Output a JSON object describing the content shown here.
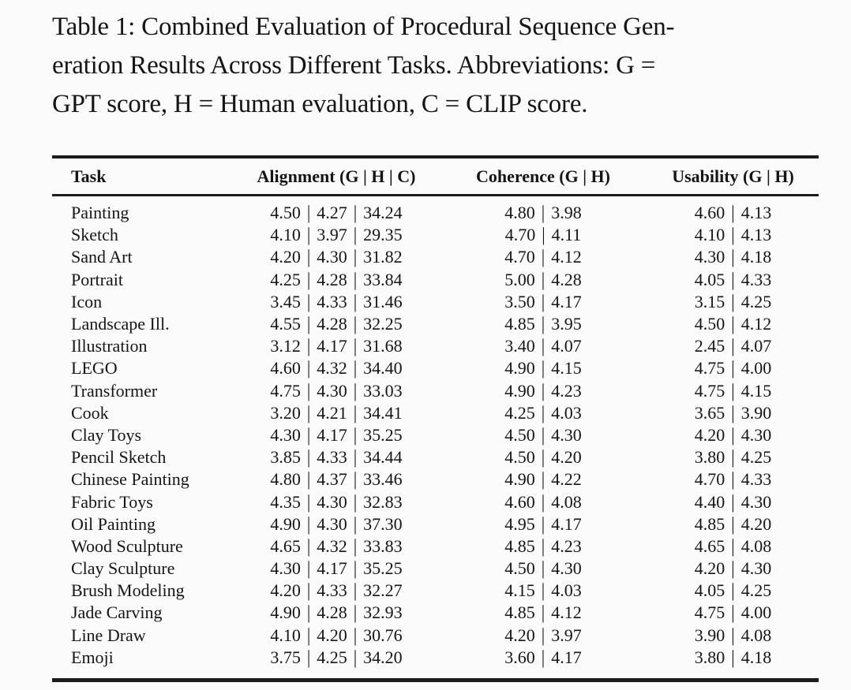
{
  "page": {
    "background": "#fbfbfb",
    "text_color": "#151515",
    "rule_color": "#1c1c1c"
  },
  "caption": {
    "lines": [
      "Table 1: Combined Evaluation of Procedural Sequence Gen-",
      "eration Results Across Different Tasks. Abbreviations: G =",
      "GPT score, H = Human evaluation, C = CLIP score."
    ]
  },
  "table": {
    "separator": "|",
    "columns": [
      {
        "key": "task",
        "label": "Task"
      },
      {
        "key": "alignment",
        "label": "Alignment (G | H | C)"
      },
      {
        "key": "coherence",
        "label": "Coherence (G | H)"
      },
      {
        "key": "usability",
        "label": "Usability (G | H)"
      }
    ],
    "rows": [
      {
        "task": "Painting",
        "alignment": [
          "4.50",
          "4.27",
          "34.24"
        ],
        "coherence": [
          "4.80",
          "3.98"
        ],
        "usability": [
          "4.60",
          "4.13"
        ]
      },
      {
        "task": "Sketch",
        "alignment": [
          "4.10",
          "3.97",
          "29.35"
        ],
        "coherence": [
          "4.70",
          "4.11"
        ],
        "usability": [
          "4.10",
          "4.13"
        ]
      },
      {
        "task": "Sand Art",
        "alignment": [
          "4.20",
          "4.30",
          "31.82"
        ],
        "coherence": [
          "4.70",
          "4.12"
        ],
        "usability": [
          "4.30",
          "4.18"
        ]
      },
      {
        "task": "Portrait",
        "alignment": [
          "4.25",
          "4.28",
          "33.84"
        ],
        "coherence": [
          "5.00",
          "4.28"
        ],
        "usability": [
          "4.05",
          "4.33"
        ]
      },
      {
        "task": "Icon",
        "alignment": [
          "3.45",
          "4.33",
          "31.46"
        ],
        "coherence": [
          "3.50",
          "4.17"
        ],
        "usability": [
          "3.15",
          "4.25"
        ]
      },
      {
        "task": "Landscape Ill.",
        "alignment": [
          "4.55",
          "4.28",
          "32.25"
        ],
        "coherence": [
          "4.85",
          "3.95"
        ],
        "usability": [
          "4.50",
          "4.12"
        ]
      },
      {
        "task": "Illustration",
        "alignment": [
          "3.12",
          "4.17",
          "31.68"
        ],
        "coherence": [
          "3.40",
          "4.07"
        ],
        "usability": [
          "2.45",
          "4.07"
        ]
      },
      {
        "task": "LEGO",
        "alignment": [
          "4.60",
          "4.32",
          "34.40"
        ],
        "coherence": [
          "4.90",
          "4.15"
        ],
        "usability": [
          "4.75",
          "4.00"
        ]
      },
      {
        "task": "Transformer",
        "alignment": [
          "4.75",
          "4.30",
          "33.03"
        ],
        "coherence": [
          "4.90",
          "4.23"
        ],
        "usability": [
          "4.75",
          "4.15"
        ]
      },
      {
        "task": "Cook",
        "alignment": [
          "3.20",
          "4.21",
          "34.41"
        ],
        "coherence": [
          "4.25",
          "4.03"
        ],
        "usability": [
          "3.65",
          "3.90"
        ]
      },
      {
        "task": "Clay Toys",
        "alignment": [
          "4.30",
          "4.17",
          "35.25"
        ],
        "coherence": [
          "4.50",
          "4.30"
        ],
        "usability": [
          "4.20",
          "4.30"
        ]
      },
      {
        "task": "Pencil Sketch",
        "alignment": [
          "3.85",
          "4.33",
          "34.44"
        ],
        "coherence": [
          "4.50",
          "4.20"
        ],
        "usability": [
          "3.80",
          "4.25"
        ]
      },
      {
        "task": "Chinese Painting",
        "alignment": [
          "4.80",
          "4.37",
          "33.46"
        ],
        "coherence": [
          "4.90",
          "4.22"
        ],
        "usability": [
          "4.70",
          "4.33"
        ]
      },
      {
        "task": "Fabric Toys",
        "alignment": [
          "4.35",
          "4.30",
          "32.83"
        ],
        "coherence": [
          "4.60",
          "4.08"
        ],
        "usability": [
          "4.40",
          "4.30"
        ]
      },
      {
        "task": "Oil Painting",
        "alignment": [
          "4.90",
          "4.30",
          "37.30"
        ],
        "coherence": [
          "4.95",
          "4.17"
        ],
        "usability": [
          "4.85",
          "4.20"
        ]
      },
      {
        "task": "Wood Sculpture",
        "alignment": [
          "4.65",
          "4.32",
          "33.83"
        ],
        "coherence": [
          "4.85",
          "4.23"
        ],
        "usability": [
          "4.65",
          "4.08"
        ]
      },
      {
        "task": "Clay Sculpture",
        "alignment": [
          "4.30",
          "4.17",
          "35.25"
        ],
        "coherence": [
          "4.50",
          "4.30"
        ],
        "usability": [
          "4.20",
          "4.30"
        ]
      },
      {
        "task": "Brush Modeling",
        "alignment": [
          "4.20",
          "4.33",
          "32.27"
        ],
        "coherence": [
          "4.15",
          "4.03"
        ],
        "usability": [
          "4.05",
          "4.25"
        ]
      },
      {
        "task": "Jade Carving",
        "alignment": [
          "4.90",
          "4.28",
          "32.93"
        ],
        "coherence": [
          "4.85",
          "4.12"
        ],
        "usability": [
          "4.75",
          "4.00"
        ]
      },
      {
        "task": "Line Draw",
        "alignment": [
          "4.10",
          "4.20",
          "30.76"
        ],
        "coherence": [
          "4.20",
          "3.97"
        ],
        "usability": [
          "3.90",
          "4.08"
        ]
      },
      {
        "task": "Emoji",
        "alignment": [
          "3.75",
          "4.25",
          "34.20"
        ],
        "coherence": [
          "3.60",
          "4.17"
        ],
        "usability": [
          "3.80",
          "4.18"
        ]
      }
    ]
  }
}
